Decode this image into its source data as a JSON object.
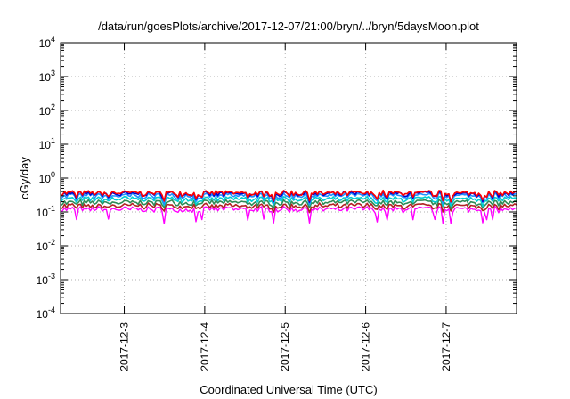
{
  "chart_data": {
    "type": "line",
    "title": "/data/run/goesPlots/archive/2017-12-07/21:00/bryn/../bryn/5daysMoon.plot",
    "xlabel": "Coordinated Universal Time (UTC)",
    "ylabel": "cGy/day",
    "yscale": "log",
    "ylim": [
      0.0001,
      10000
    ],
    "y_ticks": [
      {
        "value": 0.0001,
        "base": "10",
        "exp": "-4"
      },
      {
        "value": 0.001,
        "base": "10",
        "exp": "-3"
      },
      {
        "value": 0.01,
        "base": "10",
        "exp": "-2"
      },
      {
        "value": 0.1,
        "base": "10",
        "exp": "-1"
      },
      {
        "value": 1,
        "base": "10",
        "exp": "0"
      },
      {
        "value": 10,
        "base": "10",
        "exp": "1"
      },
      {
        "value": 100,
        "base": "10",
        "exp": "2"
      },
      {
        "value": 1000,
        "base": "10",
        "exp": "3"
      },
      {
        "value": 10000,
        "base": "10",
        "exp": "4"
      }
    ],
    "xlim": [
      "2017-12-02T05:00",
      "2017-12-07T21:00"
    ],
    "x_ticks": [
      "2017-12-3",
      "2017-12-4",
      "2017-12-5",
      "2017-12-6",
      "2017-12-7"
    ],
    "x_tick_dates": [
      "2017-12-03T00:00",
      "2017-12-04T00:00",
      "2017-12-05T00:00",
      "2017-12-06T00:00",
      "2017-12-07T00:00"
    ],
    "grid": true,
    "series": [
      {
        "color": "#ff00ff",
        "level": 0.12,
        "dip_depth": 0.55
      },
      {
        "color": "#b22222",
        "level": 0.15,
        "dip_depth": 0.2
      },
      {
        "color": "#2e8b57",
        "level": 0.19,
        "dip_depth": 0.2
      },
      {
        "color": "#00ced1",
        "level": 0.24,
        "dip_depth": 0.25
      },
      {
        "color": "#1e90ff",
        "level": 0.3,
        "dip_depth": 0.3
      },
      {
        "color": "#0000cd",
        "level": 0.34,
        "dip_depth": 0.3
      },
      {
        "color": "#ff0000",
        "level": 0.36,
        "dip_depth": 0.3
      }
    ]
  }
}
